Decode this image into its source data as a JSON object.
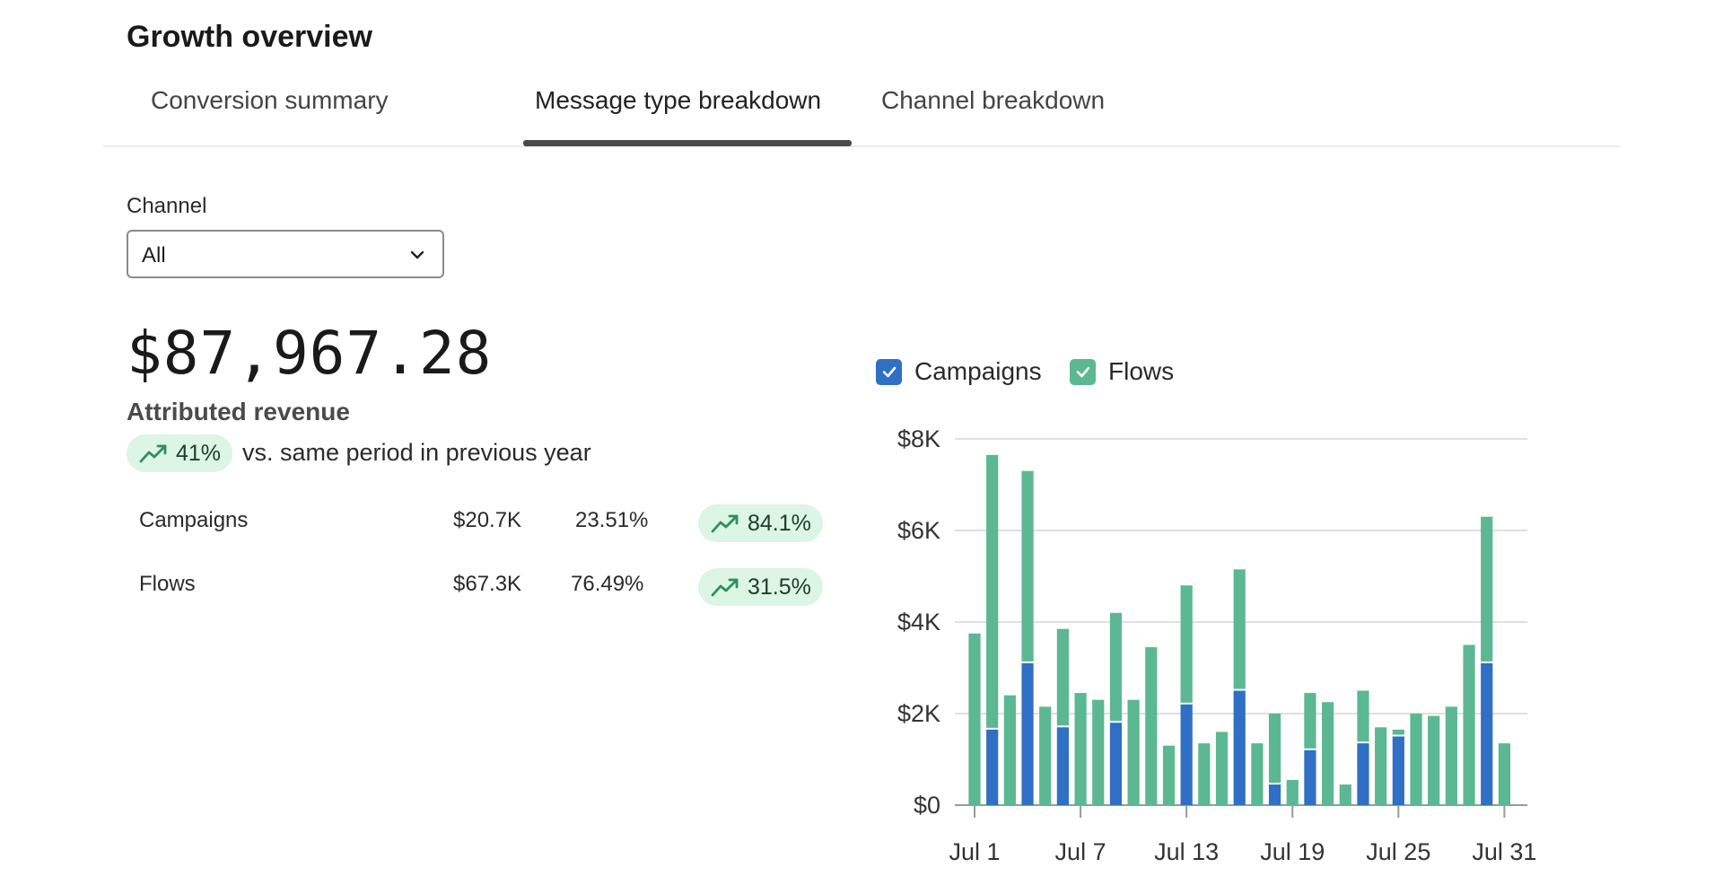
{
  "page": {
    "title": "Growth overview"
  },
  "tabs": [
    {
      "label": "Conversion summary",
      "active": false
    },
    {
      "label": "Message type breakdown",
      "active": true
    },
    {
      "label": "Channel breakdown",
      "active": false
    }
  ],
  "channel_filter": {
    "label": "Channel",
    "value": "All"
  },
  "summary": {
    "total": "$87,967.28",
    "label": "Attributed revenue",
    "change": "41%",
    "change_direction": "up",
    "comparison_text": "vs. same period in previous year"
  },
  "breakdown": [
    {
      "name": "Campaigns",
      "revenue": "$20.7K",
      "share": "23.51%",
      "change": "84.1%",
      "direction": "up"
    },
    {
      "name": "Flows",
      "revenue": "$67.3K",
      "share": "76.49%",
      "change": "31.5%",
      "direction": "up"
    }
  ],
  "colors": {
    "campaigns": "#2f6fc4",
    "flows": "#5bb892",
    "pill_bg": "#dcf5e4",
    "trend_icon": "#2f8f5a"
  },
  "icons": {
    "select": "chevron-down-icon",
    "trend": "trend-up-icon",
    "check": "check-icon"
  },
  "chart_data": {
    "type": "bar",
    "stacked": true,
    "legend": [
      {
        "name": "Campaigns",
        "checked": true
      },
      {
        "name": "Flows",
        "checked": true
      }
    ],
    "legend_position": "top-left",
    "categories": [
      "Jul 1",
      "Jul 2",
      "Jul 3",
      "Jul 4",
      "Jul 5",
      "Jul 6",
      "Jul 7",
      "Jul 8",
      "Jul 9",
      "Jul 10",
      "Jul 11",
      "Jul 12",
      "Jul 13",
      "Jul 14",
      "Jul 15",
      "Jul 16",
      "Jul 17",
      "Jul 18",
      "Jul 19",
      "Jul 20",
      "Jul 21",
      "Jul 22",
      "Jul 23",
      "Jul 24",
      "Jul 25",
      "Jul 26",
      "Jul 27",
      "Jul 28",
      "Jul 29",
      "Jul 30",
      "Jul 31"
    ],
    "x_tick_labels": [
      "Jul 1",
      "Jul 7",
      "Jul 13",
      "Jul 19",
      "Jul 25",
      "Jul 31"
    ],
    "y_tick_labels": [
      "$0",
      "$2K",
      "$4K",
      "$6K",
      "$8K"
    ],
    "y_ticks": [
      0,
      2000,
      4000,
      6000,
      8000
    ],
    "ylim": [
      0,
      8000
    ],
    "grid": true,
    "series": [
      {
        "name": "Campaigns",
        "values": [
          0,
          1650,
          0,
          3100,
          0,
          1700,
          0,
          0,
          1800,
          0,
          0,
          0,
          2200,
          0,
          0,
          2500,
          0,
          450,
          0,
          1200,
          0,
          0,
          1350,
          0,
          1500,
          0,
          0,
          0,
          0,
          3100,
          0
        ]
      },
      {
        "name": "Flows",
        "values": [
          3750,
          6000,
          2400,
          4200,
          2150,
          2150,
          2450,
          2300,
          2400,
          2300,
          3450,
          1300,
          2600,
          1350,
          1600,
          2650,
          1350,
          1550,
          550,
          1250,
          2250,
          450,
          1150,
          1700,
          150,
          2000,
          1950,
          2150,
          3500,
          3200,
          1350
        ]
      }
    ]
  }
}
